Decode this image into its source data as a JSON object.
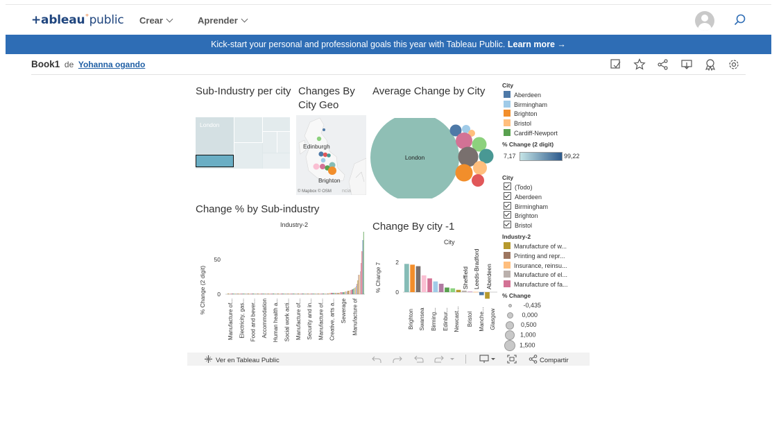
{
  "nav": {
    "logo_prefix": "+ableau",
    "logo_suffix": "public",
    "crear": "Crear",
    "aprender": "Aprender"
  },
  "banner": {
    "text": "Kick-start your personal and professional goals this year with Tableau Public.",
    "link": "Learn more →"
  },
  "book": {
    "title": "Book1",
    "de": "de",
    "author": "Yohanna ogando"
  },
  "dashboard": {
    "sub_industry_title": "Sub-Industry per city",
    "sub_industry_label": "London",
    "geo_title": "Changes By City Geo",
    "geo_labels": [
      "Edinburgh",
      "Brighton"
    ],
    "geo_credit": "© Mapbox © OSM",
    "geo_faded": "ncia",
    "avg_title": "Average Change by City",
    "avg_label": "London",
    "subind_title": "Change % by Sub-industry",
    "subind_header": "Industry-2",
    "subind_ylabel": "% Change (2 digit)",
    "subind_yticks": [
      "50",
      "0"
    ],
    "subind_categories": [
      "Manufacture of...",
      "Electricity, gas...",
      "Food and bever...",
      "Accommodation",
      "Human health a...",
      "Social work acti...",
      "Manufacture of...",
      "Security and in...",
      "Manufacture of...",
      "Creative, arts a...",
      "Sewerage",
      "Manufacture of"
    ],
    "city_title": "Change By city -1",
    "city_header": "City",
    "city_ylabel": "% Change 7",
    "city_yticks": [
      "2",
      "0"
    ],
    "city_bottom_labels": [
      "Brighton",
      "Swansea",
      "Birming...",
      "Edinbur...",
      "Newcast...",
      "Bristol",
      "Manche...",
      "Glasgow"
    ],
    "city_top_labels": [
      "Sheffield",
      "Leeds-Bradford",
      "Aberdeen"
    ]
  },
  "legend": {
    "city_title": "City",
    "cities": [
      {
        "name": "Aberdeen",
        "color": "#4e79a7"
      },
      {
        "name": "Birmingham",
        "color": "#a0cbe8"
      },
      {
        "name": "Brighton",
        "color": "#f28e2b"
      },
      {
        "name": "Bristol",
        "color": "#ffbe7d"
      },
      {
        "name": "Cardiff-Newport",
        "color": "#59a14f"
      }
    ],
    "pct_title": "% Change (2 digit)",
    "pct_min": "7,17",
    "pct_max": "99,22",
    "filter_title": "City",
    "filter_items": [
      "(Todo)",
      "Aberdeen",
      "Birmingham",
      "Brighton",
      "Bristol"
    ],
    "industry_title": "Industry-2",
    "industries": [
      {
        "name": "Manufacture of w...",
        "color": "#b6992d"
      },
      {
        "name": "Printing and repr...",
        "color": "#9d7660"
      },
      {
        "name": "Insurance, reinsu...",
        "color": "#ffbe7d"
      },
      {
        "name": "Manufacture of el...",
        "color": "#bab0ac"
      },
      {
        "name": "Manufacture of fa...",
        "color": "#d37295"
      }
    ],
    "size_title": "% Change",
    "sizes": [
      "-0,435",
      "0,000",
      "0,500",
      "1,000",
      "1,500"
    ]
  },
  "toolbar": {
    "view_label": "Ver en Tableau Public",
    "share_label": "Compartir"
  },
  "chart_data": [
    {
      "type": "bar",
      "title": "Change % by Sub-industry",
      "ylabel": "% Change (2 digit)",
      "ylim": [
        0,
        90
      ],
      "values": [
        1,
        1,
        1,
        1,
        1,
        1,
        1,
        1,
        1,
        1,
        1,
        1,
        1,
        1,
        1,
        1,
        1,
        1,
        1,
        1,
        1,
        1,
        1,
        1,
        1,
        1,
        1,
        1,
        1,
        1,
        1,
        1,
        1,
        1,
        1,
        1,
        1,
        1,
        1,
        1,
        1,
        1,
        1,
        1,
        1,
        1,
        1,
        1,
        1,
        1,
        1,
        1,
        1,
        1,
        1,
        1,
        1,
        1,
        1,
        1,
        1,
        1,
        1,
        1,
        1,
        1,
        1,
        1,
        1,
        1,
        1,
        1,
        1,
        1,
        1,
        1,
        1,
        1,
        1,
        1,
        1,
        1,
        1,
        1,
        1,
        1,
        1,
        1,
        1,
        1,
        1,
        1,
        1,
        1,
        1,
        1,
        1,
        1,
        1,
        1,
        1,
        1,
        1,
        1,
        1,
        1,
        1,
        1,
        1,
        1,
        1,
        1,
        1,
        1,
        1,
        1,
        1,
        1,
        1,
        1,
        1,
        1,
        2,
        2,
        2,
        2,
        2,
        2,
        2,
        2,
        2,
        2,
        2,
        2,
        2,
        3,
        3,
        3,
        3,
        3,
        3,
        4,
        4,
        4,
        5,
        5,
        5,
        6,
        6,
        7,
        7,
        8,
        9,
        10,
        12,
        15,
        20,
        28,
        28,
        33,
        45,
        62,
        78,
        90
      ]
    },
    {
      "type": "bar",
      "title": "Change By city -1",
      "ylabel": "% Change 7",
      "ylim": [
        -0.5,
        2.5
      ],
      "values": [
        1.85,
        1.8,
        1.7,
        1.1,
        0.9,
        0.7,
        0.55,
        0.3,
        0.25,
        0.15,
        0.1,
        0.05,
        0.02,
        -0.2,
        -0.43
      ],
      "colors": [
        "#86bcb6",
        "#f28e2b",
        "#79706e",
        "#fabfd2",
        "#d37295",
        "#a0cbe8",
        "#b07aa1",
        "#59a14f",
        "#8cd17d",
        "#b6992d",
        "#bab0ac",
        "#d4a6c8",
        "#ffbe7d",
        "#4e79a7",
        "#b6992d"
      ]
    }
  ]
}
